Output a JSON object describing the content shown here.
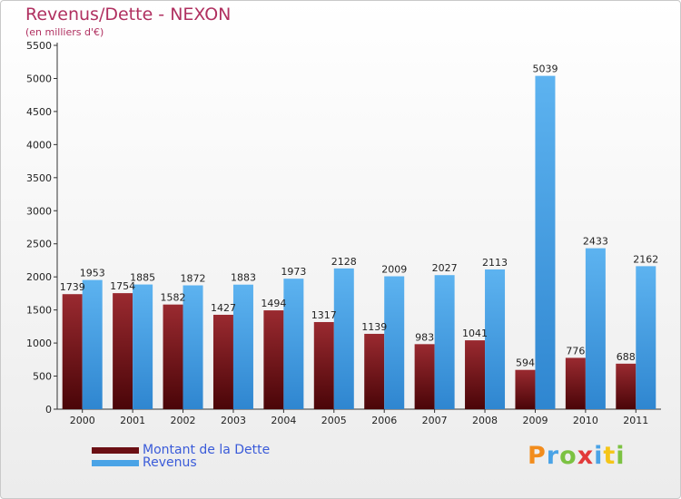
{
  "chart_data": {
    "type": "bar",
    "title": "Revenus/Dette - NEXON",
    "subtitle": "(en milliers d'€)",
    "categories": [
      "2000",
      "2001",
      "2002",
      "2003",
      "2004",
      "2005",
      "2006",
      "2007",
      "2008",
      "2009",
      "2010",
      "2011"
    ],
    "series": [
      {
        "name": "Montant de la Dette",
        "values": [
          1739,
          1754,
          1582,
          1427,
          1494,
          1317,
          1139,
          983,
          1041,
          594,
          776,
          688
        ],
        "color": "#6b0f14"
      },
      {
        "name": "Revenus",
        "values": [
          1953,
          1885,
          1872,
          1883,
          1973,
          2128,
          2009,
          2027,
          2113,
          5039,
          2433,
          2162
        ],
        "color": "#4aa3e6"
      }
    ],
    "ylim": [
      0,
      5500
    ],
    "yticks": [
      0,
      500,
      1000,
      1500,
      2000,
      2500,
      3000,
      3500,
      4000,
      4500,
      5000,
      5500
    ],
    "grid": false,
    "legend_position": "bottom-left"
  },
  "logo": {
    "letters": [
      "P",
      "r",
      "o",
      "x",
      "i",
      "t",
      "i"
    ],
    "colors": [
      "#f28c1c",
      "#4aa3e6",
      "#7cc242",
      "#e23a3a",
      "#4aa3e6",
      "#f5c518",
      "#7cc242"
    ]
  }
}
